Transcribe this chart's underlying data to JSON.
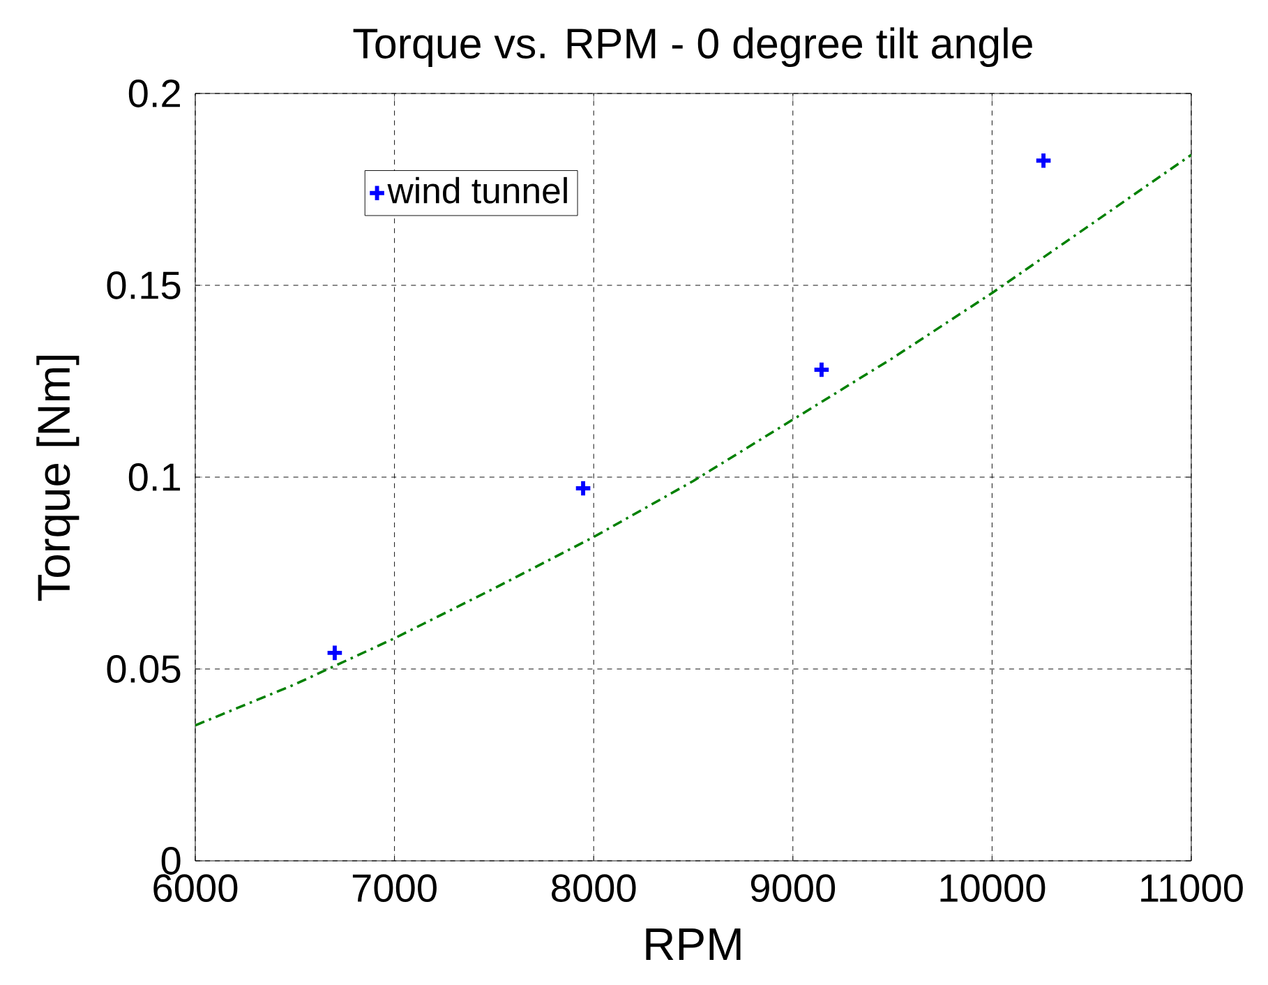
{
  "chart_data": {
    "type": "scatter",
    "title": "Torque vs. RPM - 0 degree tilt angle",
    "xlabel": "RPM",
    "ylabel": "Torque [Nm]",
    "series": [
      {
        "name": "wind tunnel",
        "color": "#0000ff",
        "marker": "cross",
        "x": [
          6700,
          7947,
          9144,
          10258
        ],
        "values": [
          0.0542,
          0.0971,
          0.128,
          0.1825
        ]
      },
      {
        "type": "line",
        "color": "#008000",
        "marker": "none",
        "line_style": "dashed",
        "x": [
          6000,
          6500,
          7000,
          7500,
          8000,
          8500,
          9000,
          9500,
          10000,
          10500,
          11000
        ],
        "values": [
          0.0353,
          0.046,
          0.058,
          0.071,
          0.0844,
          0.099,
          0.115,
          0.131,
          0.148,
          0.166,
          0.184
        ]
      }
    ],
    "xlim": [
      6000,
      11000
    ],
    "xticks": [
      6000,
      7000,
      8000,
      9000,
      10000,
      11000
    ],
    "ylim": [
      0,
      0.2
    ],
    "yticks": [
      0,
      0.05,
      0.1,
      0.15,
      0.2
    ],
    "grid": true,
    "legend": "top left"
  }
}
